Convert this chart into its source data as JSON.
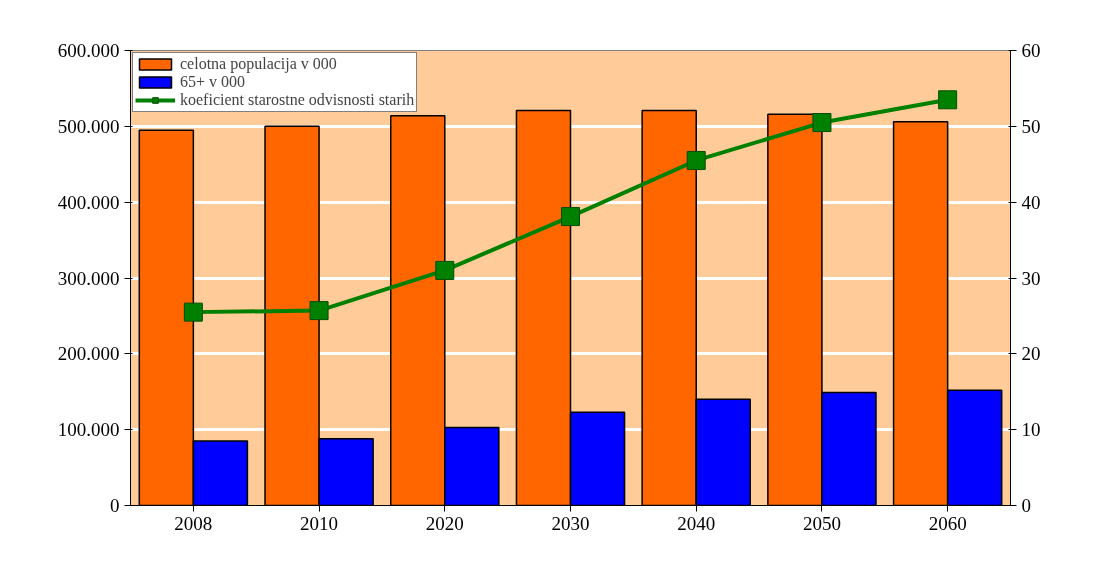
{
  "chart_data": {
    "type": "bar",
    "categories": [
      "2008",
      "2010",
      "2020",
      "2030",
      "2040",
      "2050",
      "2060"
    ],
    "series": [
      {
        "name": "celotna populacija v 000",
        "color": "#ff6600",
        "values": [
          495000,
          500000,
          514000,
          521000,
          521000,
          516000,
          506000
        ]
      },
      {
        "name": "65+ v 000",
        "color": "#0000ff",
        "values": [
          85000,
          88000,
          103000,
          123000,
          140000,
          149000,
          152000
        ]
      },
      {
        "name": "koeficient starostne odvisnosti starih",
        "type": "line",
        "axis": "y2",
        "color": "#008000",
        "values": [
          25.5,
          25.7,
          31.0,
          38.1,
          45.5,
          50.5,
          53.5
        ]
      }
    ],
    "ylim": [
      0,
      600000
    ],
    "yticks": [
      {
        "value": 0,
        "label": "0"
      },
      {
        "value": 100000,
        "label": "100.000"
      },
      {
        "value": 200000,
        "label": "200.000"
      },
      {
        "value": 300000,
        "label": "300.000"
      },
      {
        "value": 400000,
        "label": "400.000"
      },
      {
        "value": 500000,
        "label": "500.000"
      },
      {
        "value": 600000,
        "label": "600.000"
      }
    ],
    "y2lim": [
      0,
      60
    ],
    "y2ticks": [
      0,
      10,
      20,
      30,
      40,
      50,
      60
    ],
    "grid": "y",
    "legend": "top left",
    "marker": "square",
    "line_style": "solid"
  }
}
